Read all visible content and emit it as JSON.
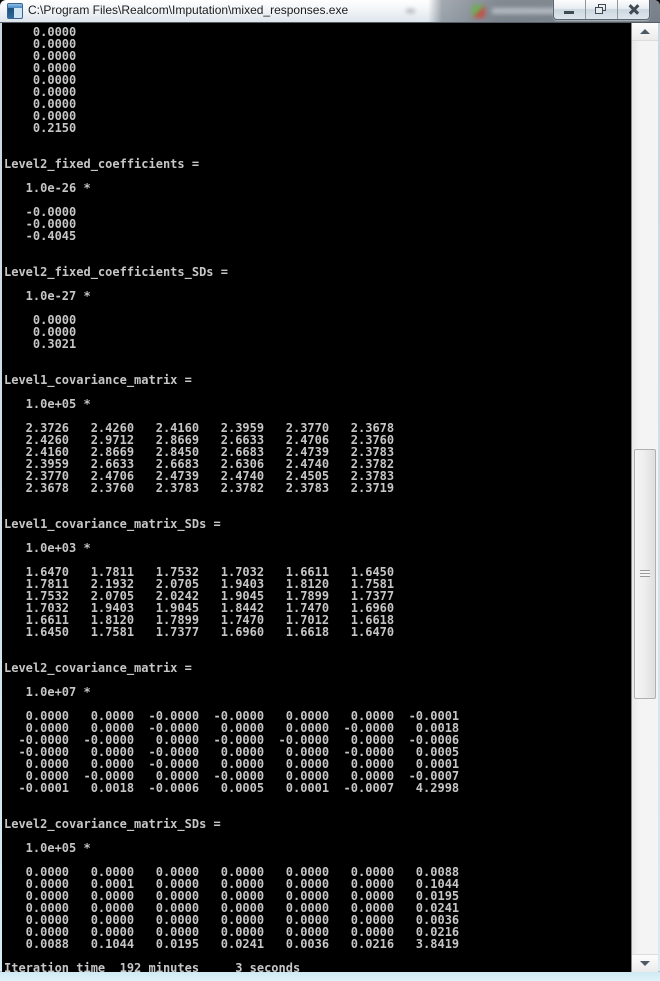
{
  "window": {
    "title": "C:\\Program Files\\Realcom\\Imputation\\mixed_responses.exe",
    "controls": {
      "minimize": "Minimize",
      "restore": "Restore Down",
      "close": "Close"
    }
  },
  "console": {
    "colors": {
      "background": "#000000",
      "text": "#c6c6c6"
    },
    "sections": [
      {
        "name": "",
        "scale": "",
        "rows": [
          [
            "0.0000"
          ],
          [
            "0.0000"
          ],
          [
            "0.0000"
          ],
          [
            "0.0000"
          ],
          [
            "0.0000"
          ],
          [
            "0.0000"
          ],
          [
            "0.0000"
          ],
          [
            "0.0000"
          ],
          [
            "0.2150"
          ]
        ]
      },
      {
        "name": "Level2_fixed_coefficients",
        "scale": "1.0e-26",
        "rows": [
          [
            "-0.0000"
          ],
          [
            "-0.0000"
          ],
          [
            "-0.4045"
          ]
        ]
      },
      {
        "name": "Level2_fixed_coefficients_SDs",
        "scale": "1.0e-27",
        "rows": [
          [
            "0.0000"
          ],
          [
            "0.0000"
          ],
          [
            "0.3021"
          ]
        ]
      },
      {
        "name": "Level1_covariance_matrix",
        "scale": "1.0e+05",
        "rows": [
          [
            "2.3726",
            "2.4260",
            "2.4160",
            "2.3959",
            "2.3770",
            "2.3678"
          ],
          [
            "2.4260",
            "2.9712",
            "2.8669",
            "2.6633",
            "2.4706",
            "2.3760"
          ],
          [
            "2.4160",
            "2.8669",
            "2.8450",
            "2.6683",
            "2.4739",
            "2.3783"
          ],
          [
            "2.3959",
            "2.6633",
            "2.6683",
            "2.6306",
            "2.4740",
            "2.3782"
          ],
          [
            "2.3770",
            "2.4706",
            "2.4739",
            "2.4740",
            "2.4505",
            "2.3783"
          ],
          [
            "2.3678",
            "2.3760",
            "2.3783",
            "2.3782",
            "2.3783",
            "2.3719"
          ]
        ]
      },
      {
        "name": "Level1_covariance_matrix_SDs",
        "scale": "1.0e+03",
        "rows": [
          [
            "1.6470",
            "1.7811",
            "1.7532",
            "1.7032",
            "1.6611",
            "1.6450"
          ],
          [
            "1.7811",
            "2.1932",
            "2.0705",
            "1.9403",
            "1.8120",
            "1.7581"
          ],
          [
            "1.7532",
            "2.0705",
            "2.0242",
            "1.9045",
            "1.7899",
            "1.7377"
          ],
          [
            "1.7032",
            "1.9403",
            "1.9045",
            "1.8442",
            "1.7470",
            "1.6960"
          ],
          [
            "1.6611",
            "1.8120",
            "1.7899",
            "1.7470",
            "1.7012",
            "1.6618"
          ],
          [
            "1.6450",
            "1.7581",
            "1.7377",
            "1.6960",
            "1.6618",
            "1.6470"
          ]
        ]
      },
      {
        "name": "Level2_covariance_matrix",
        "scale": "1.0e+07",
        "rows": [
          [
            "0.0000",
            "0.0000",
            "-0.0000",
            "-0.0000",
            "0.0000",
            "0.0000",
            "-0.0001"
          ],
          [
            "0.0000",
            "0.0000",
            "-0.0000",
            "0.0000",
            "0.0000",
            "-0.0000",
            "0.0018"
          ],
          [
            "-0.0000",
            "-0.0000",
            "0.0000",
            "-0.0000",
            "-0.0000",
            "0.0000",
            "-0.0006"
          ],
          [
            "-0.0000",
            "0.0000",
            "-0.0000",
            "0.0000",
            "0.0000",
            "-0.0000",
            "0.0005"
          ],
          [
            "0.0000",
            "0.0000",
            "-0.0000",
            "0.0000",
            "0.0000",
            "0.0000",
            "0.0001"
          ],
          [
            "0.0000",
            "-0.0000",
            "0.0000",
            "-0.0000",
            "0.0000",
            "0.0000",
            "-0.0007"
          ],
          [
            "-0.0001",
            "0.0018",
            "-0.0006",
            "0.0005",
            "0.0001",
            "-0.0007",
            "4.2998"
          ]
        ]
      },
      {
        "name": "Level2_covariance_matrix_SDs",
        "scale": "1.0e+05",
        "rows": [
          [
            "0.0000",
            "0.0000",
            "0.0000",
            "0.0000",
            "0.0000",
            "0.0000",
            "0.0088"
          ],
          [
            "0.0000",
            "0.0001",
            "0.0000",
            "0.0000",
            "0.0000",
            "0.0000",
            "0.1044"
          ],
          [
            "0.0000",
            "0.0000",
            "0.0000",
            "0.0000",
            "0.0000",
            "0.0000",
            "0.0195"
          ],
          [
            "0.0000",
            "0.0000",
            "0.0000",
            "0.0000",
            "0.0000",
            "0.0000",
            "0.0241"
          ],
          [
            "0.0000",
            "0.0000",
            "0.0000",
            "0.0000",
            "0.0000",
            "0.0000",
            "0.0036"
          ],
          [
            "0.0000",
            "0.0000",
            "0.0000",
            "0.0000",
            "0.0000",
            "0.0000",
            "0.0216"
          ],
          [
            "0.0088",
            "0.1044",
            "0.0195",
            "0.0241",
            "0.0036",
            "0.0216",
            "3.8419"
          ]
        ]
      }
    ],
    "footer": {
      "label": "Iteration time",
      "minutes": "192",
      "minutes_unit": "minutes",
      "seconds": "3",
      "seconds_unit": "seconds"
    }
  }
}
